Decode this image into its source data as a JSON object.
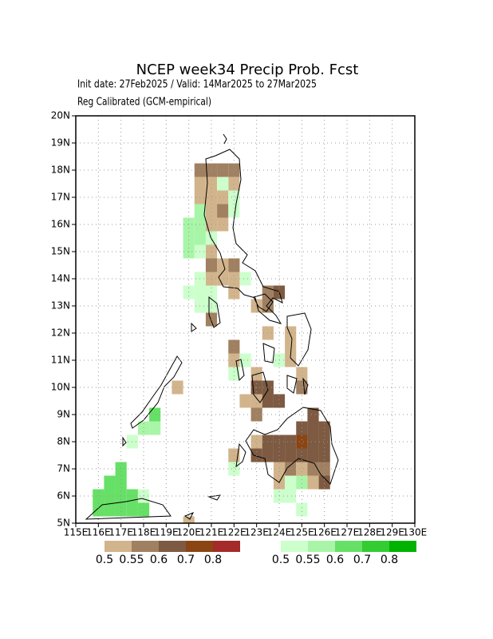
{
  "chart_data": {
    "type": "grid-map",
    "title": "NCEP week34 Precip Prob. Fcst",
    "subtitle": "Init date: 27Feb2025 / Valid: 14Mar2025 to 27Mar2025",
    "note": "Reg Calibrated (GCM-empirical)",
    "xlim": [
      115,
      130
    ],
    "ylim": [
      5,
      20
    ],
    "grid": true,
    "xticks": [
      {
        "value": 115,
        "label": "115E"
      },
      {
        "value": 116,
        "label": "116E"
      },
      {
        "value": 117,
        "label": "117E"
      },
      {
        "value": 118,
        "label": "118E"
      },
      {
        "value": 119,
        "label": "119E"
      },
      {
        "value": 120,
        "label": "120E"
      },
      {
        "value": 121,
        "label": "121E"
      },
      {
        "value": 122,
        "label": "122E"
      },
      {
        "value": 123,
        "label": "123E"
      },
      {
        "value": 124,
        "label": "124E"
      },
      {
        "value": 125,
        "label": "125E"
      },
      {
        "value": 126,
        "label": "126E"
      },
      {
        "value": 127,
        "label": "127E"
      },
      {
        "value": 128,
        "label": "128E"
      },
      {
        "value": 129,
        "label": "129E"
      },
      {
        "value": 130,
        "label": "130E"
      }
    ],
    "yticks": [
      {
        "value": 5,
        "label": "5N"
      },
      {
        "value": 6,
        "label": "6N"
      },
      {
        "value": 7,
        "label": "7N"
      },
      {
        "value": 8,
        "label": "8N"
      },
      {
        "value": 9,
        "label": "9N"
      },
      {
        "value": 10,
        "label": "10N"
      },
      {
        "value": 11,
        "label": "11N"
      },
      {
        "value": 12,
        "label": "12N"
      },
      {
        "value": 13,
        "label": "13N"
      },
      {
        "value": 14,
        "label": "14N"
      },
      {
        "value": 15,
        "label": "15N"
      },
      {
        "value": 16,
        "label": "16N"
      },
      {
        "value": 17,
        "label": "17N"
      },
      {
        "value": 18,
        "label": "18N"
      },
      {
        "value": 19,
        "label": "19N"
      },
      {
        "value": 20,
        "label": "20N"
      }
    ],
    "colorbars": [
      {
        "colors": [
          "#d2b48c",
          "#a08060",
          "#7d5a41",
          "#8b4513",
          "#a52a2a"
        ],
        "levels": [
          0.5,
          0.55,
          0.6,
          0.7,
          0.8
        ],
        "cells": [
          [
            120.5,
            18,
            0.55
          ],
          [
            121,
            18,
            0.55
          ],
          [
            121.5,
            18,
            0.55
          ],
          [
            122,
            18,
            0.55
          ],
          [
            120.5,
            17.5,
            0.5
          ],
          [
            121,
            17.5,
            0.5
          ],
          [
            122,
            17.5,
            0.5
          ],
          [
            120.5,
            17,
            0.5
          ],
          [
            121,
            17,
            0.5
          ],
          [
            121.5,
            17,
            0.5
          ],
          [
            121,
            16.5,
            0.5
          ],
          [
            121.5,
            16.5,
            0.55
          ],
          [
            121,
            16,
            0.5
          ],
          [
            121.5,
            16,
            0.5
          ],
          [
            121,
            15,
            0.5
          ],
          [
            121,
            14.5,
            0.55
          ],
          [
            121.5,
            14.5,
            0.5
          ],
          [
            122,
            14.5,
            0.55
          ],
          [
            121,
            14,
            0.5
          ],
          [
            121.5,
            14,
            0.5
          ],
          [
            122,
            14,
            0.5
          ],
          [
            122,
            13.5,
            0.5
          ],
          [
            123.5,
            13.5,
            0.55
          ],
          [
            124,
            13.5,
            0.6
          ],
          [
            123,
            13,
            0.5
          ],
          [
            123.5,
            13,
            0.55
          ],
          [
            121,
            12.5,
            0.55
          ],
          [
            123.5,
            12,
            0.5
          ],
          [
            124.5,
            12,
            0.5
          ],
          [
            122,
            11.5,
            0.55
          ],
          [
            124.5,
            11.5,
            0.5
          ],
          [
            122,
            11,
            0.5
          ],
          [
            124.5,
            11,
            0.5
          ],
          [
            123,
            10.5,
            0.5
          ],
          [
            125,
            10.5,
            0.5
          ],
          [
            119.5,
            10,
            0.5
          ],
          [
            123,
            10,
            0.6
          ],
          [
            123.5,
            10,
            0.6
          ],
          [
            125,
            10,
            0.55
          ],
          [
            122.5,
            9.5,
            0.5
          ],
          [
            123,
            9.5,
            0.5
          ],
          [
            123.5,
            9.5,
            0.6
          ],
          [
            124,
            9.5,
            0.6
          ],
          [
            123,
            9,
            0.55
          ],
          [
            125.5,
            9,
            0.6
          ],
          [
            125,
            8.5,
            0.6
          ],
          [
            125.5,
            8.5,
            0.6
          ],
          [
            126,
            8.5,
            0.6
          ],
          [
            123,
            8,
            0.5
          ],
          [
            123.5,
            8,
            0.6
          ],
          [
            124,
            8,
            0.6
          ],
          [
            124.5,
            8,
            0.6
          ],
          [
            125,
            8,
            0.7
          ],
          [
            125.5,
            8,
            0.6
          ],
          [
            126,
            8,
            0.6
          ],
          [
            122,
            7.5,
            0.5
          ],
          [
            123,
            7.5,
            0.6
          ],
          [
            123.5,
            7.5,
            0.6
          ],
          [
            124,
            7.5,
            0.6
          ],
          [
            124.5,
            7.5,
            0.6
          ],
          [
            125,
            7.5,
            0.6
          ],
          [
            125.5,
            7.5,
            0.6
          ],
          [
            126,
            7.5,
            0.6
          ],
          [
            124,
            7,
            0.5
          ],
          [
            124.5,
            7,
            0.55
          ],
          [
            125,
            7,
            0.5
          ],
          [
            125.5,
            7,
            0.55
          ],
          [
            126,
            7,
            0.55
          ],
          [
            124,
            6.5,
            0.5
          ],
          [
            125.5,
            6.5,
            0.5
          ],
          [
            126,
            6.5,
            0.6
          ],
          [
            120,
            5,
            0.5
          ]
        ]
      },
      {
        "colors": [
          "#ccffcc",
          "#a8f5a8",
          "#66e066",
          "#33cc33",
          "#00b300"
        ],
        "levels": [
          0.5,
          0.55,
          0.6,
          0.7,
          0.8
        ],
        "cells": [
          [
            121.5,
            17.5,
            0.5
          ],
          [
            122,
            17,
            0.5
          ],
          [
            120.5,
            16.5,
            0.55
          ],
          [
            122,
            16.5,
            0.5
          ],
          [
            120,
            16,
            0.55
          ],
          [
            120.5,
            16,
            0.55
          ],
          [
            120,
            15.5,
            0.55
          ],
          [
            120.5,
            15.5,
            0.55
          ],
          [
            121,
            15.5,
            0.5
          ],
          [
            120,
            15,
            0.55
          ],
          [
            120.5,
            15,
            0.5
          ],
          [
            120.5,
            14,
            0.5
          ],
          [
            122.5,
            14,
            0.5
          ],
          [
            120,
            13.5,
            0.5
          ],
          [
            120.5,
            13.5,
            0.5
          ],
          [
            121,
            13.5,
            0.5
          ],
          [
            120.5,
            13,
            0.5
          ],
          [
            121,
            13,
            0.5
          ],
          [
            122.5,
            11,
            0.5
          ],
          [
            124,
            11,
            0.5
          ],
          [
            122,
            10.5,
            0.5
          ],
          [
            118.5,
            9,
            0.6
          ],
          [
            118,
            8.5,
            0.55
          ],
          [
            118.5,
            8.5,
            0.55
          ],
          [
            117.5,
            8,
            0.5
          ],
          [
            117,
            7,
            0.6
          ],
          [
            122,
            7,
            0.5
          ],
          [
            116.5,
            6.5,
            0.6
          ],
          [
            117,
            6.5,
            0.6
          ],
          [
            124.5,
            6.5,
            0.5
          ],
          [
            125,
            6.5,
            0.55
          ],
          [
            116,
            6,
            0.6
          ],
          [
            116.5,
            6,
            0.6
          ],
          [
            117,
            6,
            0.6
          ],
          [
            117.5,
            6,
            0.6
          ],
          [
            118,
            6,
            0.5
          ],
          [
            124,
            6,
            0.5
          ],
          [
            124.5,
            6,
            0.5
          ],
          [
            116,
            5.5,
            0.6
          ],
          [
            116.5,
            5.5,
            0.6
          ],
          [
            117,
            5.5,
            0.6
          ],
          [
            117.5,
            5.5,
            0.6
          ],
          [
            118,
            5.5,
            0.6
          ],
          [
            125,
            5.5,
            0.5
          ]
        ]
      }
    ]
  }
}
